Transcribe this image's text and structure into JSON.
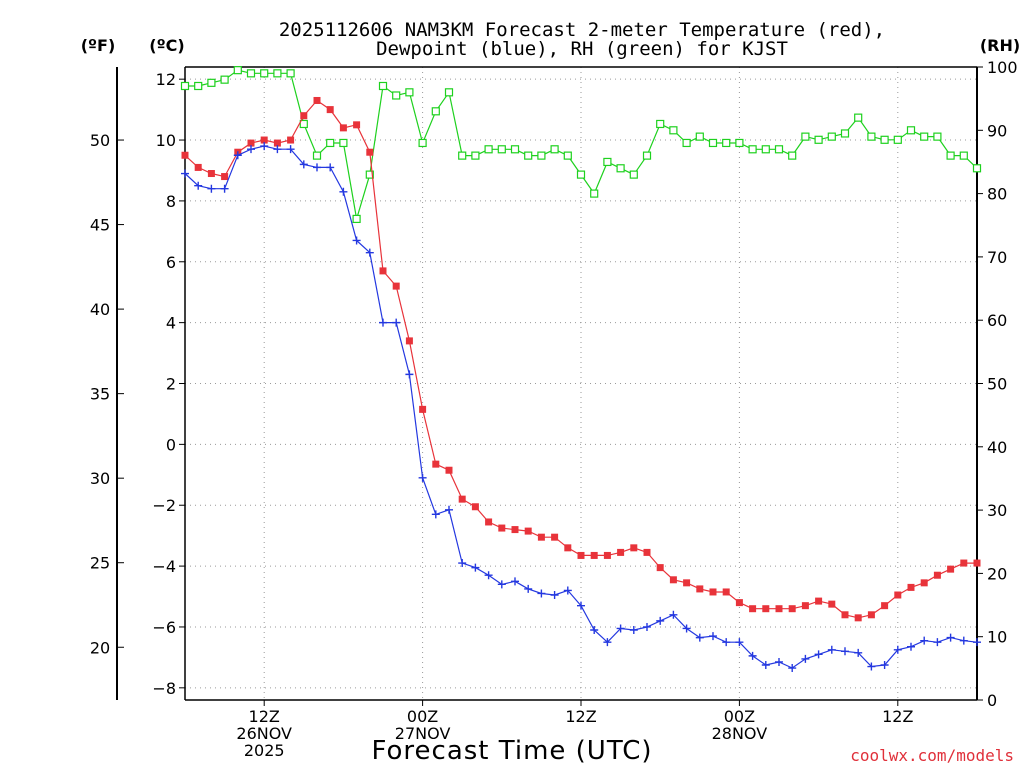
{
  "chart_data": {
    "type": "line",
    "title": "2025112606 NAM3KM Forecast 2-meter Temperature (red),",
    "subtitle": "Dewpoint (blue), RH (green) for KJST",
    "xlabel": "Forecast Time (UTC)",
    "credit": "coolwx.com/models",
    "units": {
      "fahrenheit": "(ºF)",
      "celsius": "(ºC)",
      "rh": "(RH)"
    },
    "x_ticks": [
      {
        "hour": 6,
        "lines": [
          "12Z",
          "26NOV",
          "2025"
        ]
      },
      {
        "hour": 18,
        "lines": [
          "00Z",
          "27NOV"
        ]
      },
      {
        "hour": 30,
        "lines": [
          "12Z"
        ]
      },
      {
        "hour": 42,
        "lines": [
          "00Z",
          "28NOV"
        ]
      },
      {
        "hour": 54,
        "lines": [
          "12Z"
        ]
      }
    ],
    "xlim": [
      0,
      60
    ],
    "ylim_celsius": [
      -8.4,
      12.4
    ],
    "yticks_celsius": [
      "12",
      "10",
      "8",
      "6",
      "4",
      "2",
      "0",
      "−2",
      "−4",
      "−6",
      "−8"
    ],
    "yticks_fahrenheit": [
      "50",
      "45",
      "40",
      "35",
      "30",
      "25",
      "20"
    ],
    "ylim_rh": [
      0,
      100
    ],
    "yticks_rh": [
      "100",
      "90",
      "80",
      "70",
      "60",
      "50",
      "40",
      "30",
      "20",
      "10",
      "0"
    ],
    "colors": {
      "temperature": "#e8333a",
      "dewpoint": "#2438e0",
      "rh": "#1ed11e",
      "grid": "#9a9a9a"
    },
    "series": [
      {
        "name": "2-meter Temperature",
        "unit": "C",
        "x": [
          0,
          1,
          2,
          3,
          4,
          5,
          6,
          7,
          8,
          9,
          10,
          11,
          12,
          13,
          14,
          15,
          16,
          17,
          18,
          19,
          20,
          21,
          22,
          23,
          24,
          25,
          26,
          27,
          28,
          29,
          30,
          31,
          32,
          33,
          34,
          35,
          36,
          37,
          38,
          39,
          40,
          41,
          42,
          43,
          44,
          45,
          46,
          47,
          48,
          49,
          50,
          51,
          52,
          53,
          54,
          55,
          56,
          57,
          58,
          59,
          60
        ],
        "values": [
          9.5,
          9.1,
          8.9,
          8.8,
          9.6,
          9.9,
          10.0,
          9.9,
          10.0,
          10.8,
          11.3,
          11.0,
          10.4,
          10.5,
          9.6,
          5.7,
          5.2,
          3.4,
          1.15,
          -0.65,
          -0.85,
          -1.8,
          -2.05,
          -2.55,
          -2.75,
          -2.8,
          -2.85,
          -3.05,
          -3.05,
          -3.4,
          -3.65,
          -3.65,
          -3.65,
          -3.55,
          -3.4,
          -3.55,
          -4.05,
          -4.45,
          -4.55,
          -4.75,
          -4.85,
          -4.85,
          -5.2,
          -5.4,
          -5.4,
          -5.4,
          -5.4,
          -5.3,
          -5.15,
          -5.25,
          -5.6,
          -5.7,
          -5.6,
          -5.3,
          -4.95,
          -4.7,
          -4.55,
          -4.3,
          -4.1,
          -3.9,
          -3.9
        ]
      },
      {
        "name": "Dewpoint",
        "unit": "C",
        "x": [
          0,
          1,
          2,
          3,
          4,
          5,
          6,
          7,
          8,
          9,
          10,
          11,
          12,
          13,
          14,
          15,
          16,
          17,
          18,
          19,
          20,
          21,
          22,
          23,
          24,
          25,
          26,
          27,
          28,
          29,
          30,
          31,
          32,
          33,
          34,
          35,
          36,
          37,
          38,
          39,
          40,
          41,
          42,
          43,
          44,
          45,
          46,
          47,
          48,
          49,
          50,
          51,
          52,
          53,
          54,
          55,
          56,
          57,
          58,
          59,
          60
        ],
        "values": [
          8.9,
          8.5,
          8.4,
          8.4,
          9.5,
          9.7,
          9.8,
          9.7,
          9.7,
          9.2,
          9.1,
          9.1,
          8.3,
          6.7,
          6.3,
          4.0,
          4.0,
          2.3,
          -1.1,
          -2.3,
          -2.15,
          -3.9,
          -4.05,
          -4.3,
          -4.6,
          -4.5,
          -4.75,
          -4.9,
          -4.95,
          -4.8,
          -5.3,
          -6.1,
          -6.5,
          -6.05,
          -6.1,
          -6.0,
          -5.8,
          -5.6,
          -6.05,
          -6.35,
          -6.3,
          -6.5,
          -6.5,
          -6.95,
          -7.25,
          -7.15,
          -7.35,
          -7.05,
          -6.9,
          -6.75,
          -6.8,
          -6.85,
          -7.3,
          -7.25,
          -6.75,
          -6.65,
          -6.45,
          -6.5,
          -6.35,
          -6.45,
          -6.5
        ]
      },
      {
        "name": "Relative Humidity",
        "unit": "%",
        "x": [
          0,
          1,
          2,
          3,
          4,
          5,
          6,
          7,
          8,
          9,
          10,
          11,
          12,
          13,
          14,
          15,
          16,
          17,
          18,
          19,
          20,
          21,
          22,
          23,
          24,
          25,
          26,
          27,
          28,
          29,
          30,
          31,
          32,
          33,
          34,
          35,
          36,
          37,
          38,
          39,
          40,
          41,
          42,
          43,
          44,
          45,
          46,
          47,
          48,
          49,
          50,
          51,
          52,
          53,
          54,
          55,
          56,
          57,
          58,
          59,
          60
        ],
        "values": [
          97,
          97,
          97.5,
          98,
          99.5,
          99,
          99,
          99,
          99,
          91,
          86,
          88,
          88,
          76,
          83,
          97,
          95.5,
          96,
          88,
          93,
          96,
          86,
          86,
          87,
          87,
          87,
          86,
          86,
          87,
          86,
          83,
          80,
          85,
          84,
          83,
          86,
          91,
          90,
          88,
          89,
          88,
          88,
          88,
          87,
          87,
          87,
          86,
          89,
          88.5,
          89,
          89.5,
          92,
          89,
          88.5,
          88.5,
          90,
          89,
          89,
          86,
          86,
          84
        ]
      }
    ]
  }
}
